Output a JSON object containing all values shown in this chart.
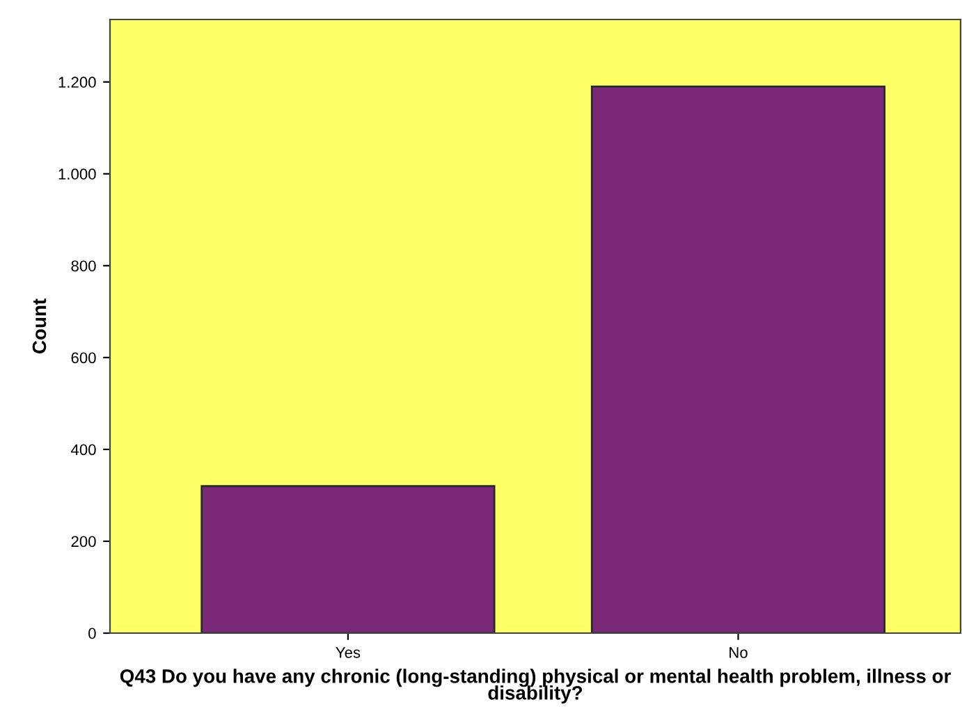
{
  "chart_data": {
    "type": "bar",
    "xlabel": "Q43 Do you have any chronic (long-standing) physical or mental health problem, illness or disability?",
    "ylabel": "Count",
    "categories": [
      "Yes",
      "No"
    ],
    "values": [
      320,
      1190
    ],
    "color": "#7b2979",
    "ylim": [
      0,
      1336
    ],
    "yticks": [
      0,
      200,
      400,
      600,
      800,
      {
        "value": 1000,
        "label": "1.000"
      },
      {
        "value": 1200,
        "label": "1.200"
      }
    ],
    "grid": false,
    "legend": false
  }
}
